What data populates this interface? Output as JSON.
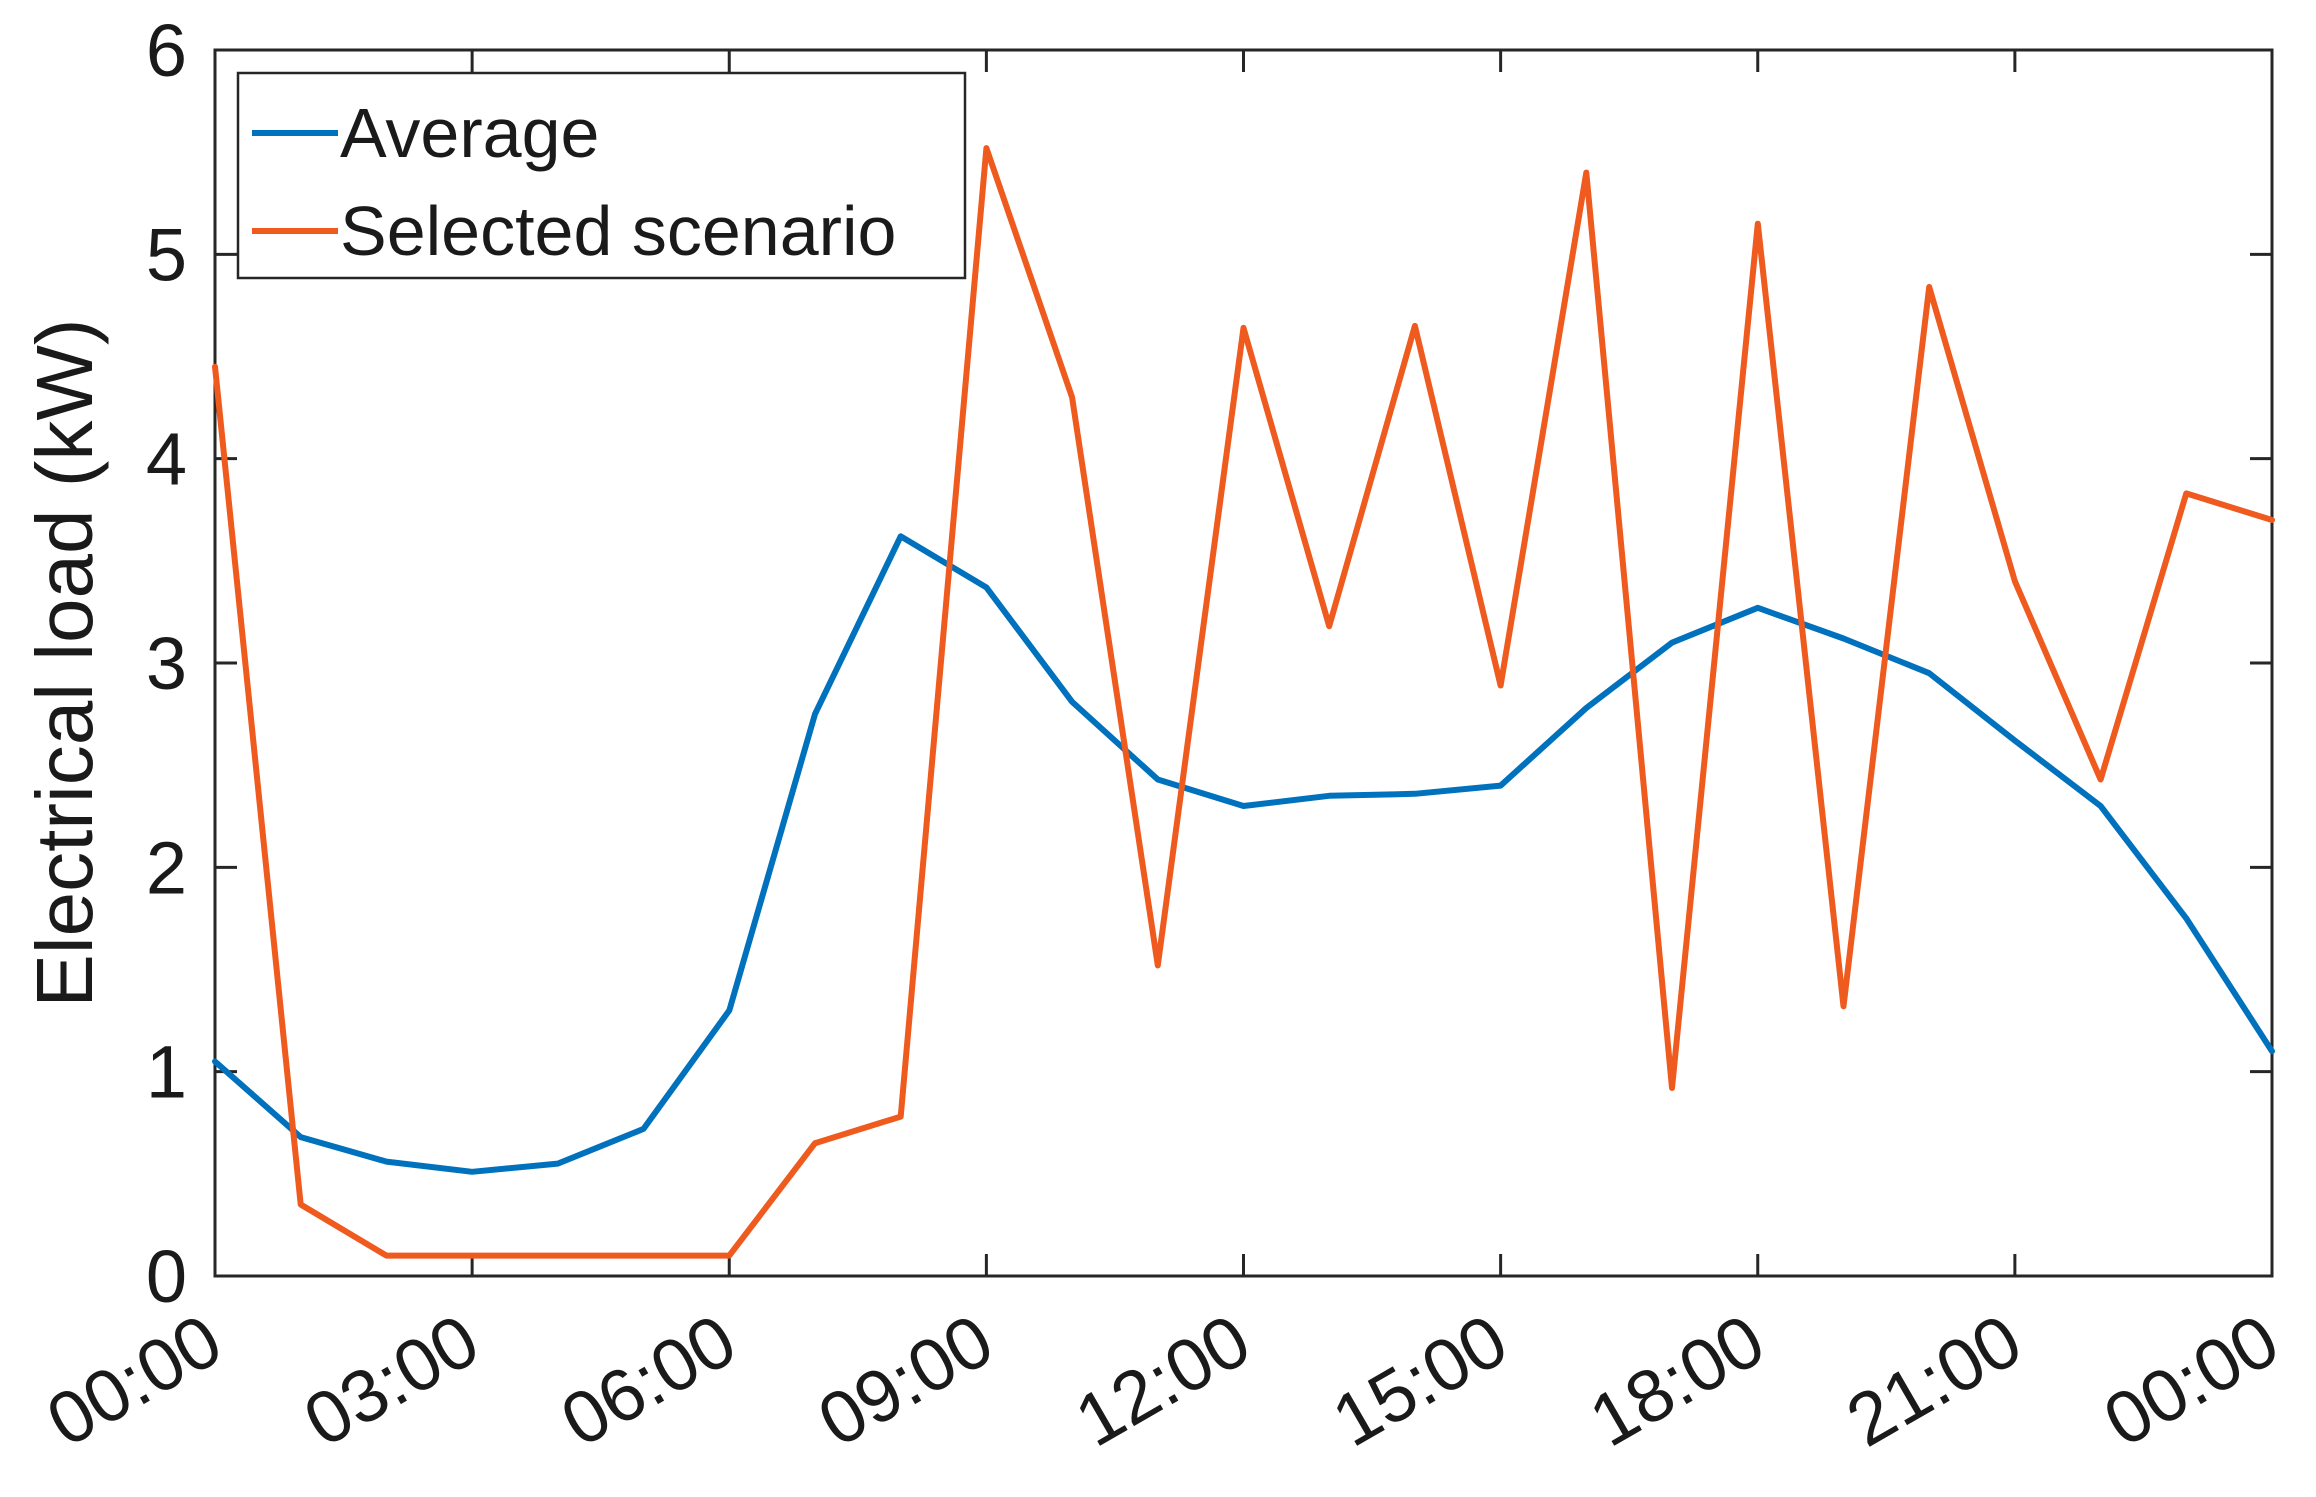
{
  "chart_data": {
    "type": "line",
    "title": "",
    "xlabel": "",
    "ylabel": "Electrical load (kW)",
    "x_hours": [
      0,
      1,
      2,
      3,
      4,
      5,
      6,
      7,
      8,
      9,
      10,
      11,
      12,
      13,
      14,
      15,
      16,
      17,
      18,
      19,
      20,
      21,
      22,
      23,
      24
    ],
    "x_ticks": [
      {
        "hour": 0,
        "label": "00:00"
      },
      {
        "hour": 3,
        "label": "03:00"
      },
      {
        "hour": 6,
        "label": "06:00"
      },
      {
        "hour": 9,
        "label": "09:00"
      },
      {
        "hour": 12,
        "label": "12:00"
      },
      {
        "hour": 15,
        "label": "15:00"
      },
      {
        "hour": 18,
        "label": "18:00"
      },
      {
        "hour": 21,
        "label": "21:00"
      },
      {
        "hour": 24,
        "label": "00:00"
      }
    ],
    "y_ticks": [
      0,
      1,
      2,
      3,
      4,
      5,
      6
    ],
    "xlim": [
      0,
      24
    ],
    "ylim": [
      0,
      6
    ],
    "grid": false,
    "legend_position": "top-left",
    "series": [
      {
        "name": "Average",
        "color": "#0072BD",
        "values": [
          1.05,
          0.68,
          0.56,
          0.51,
          0.55,
          0.72,
          1.3,
          2.75,
          3.62,
          3.37,
          2.81,
          2.43,
          2.3,
          2.35,
          2.36,
          2.4,
          2.78,
          3.1,
          3.27,
          3.12,
          2.95,
          2.62,
          2.3,
          1.75,
          1.1
        ]
      },
      {
        "name": "Selected scenario",
        "color": "#EF5A1E",
        "values": [
          4.45,
          0.35,
          0.1,
          0.1,
          0.1,
          0.1,
          0.1,
          0.65,
          0.78,
          5.52,
          4.3,
          1.52,
          4.64,
          3.18,
          4.65,
          2.89,
          5.4,
          0.92,
          5.15,
          1.32,
          4.84,
          3.4,
          2.43,
          3.83,
          3.7
        ]
      }
    ]
  }
}
